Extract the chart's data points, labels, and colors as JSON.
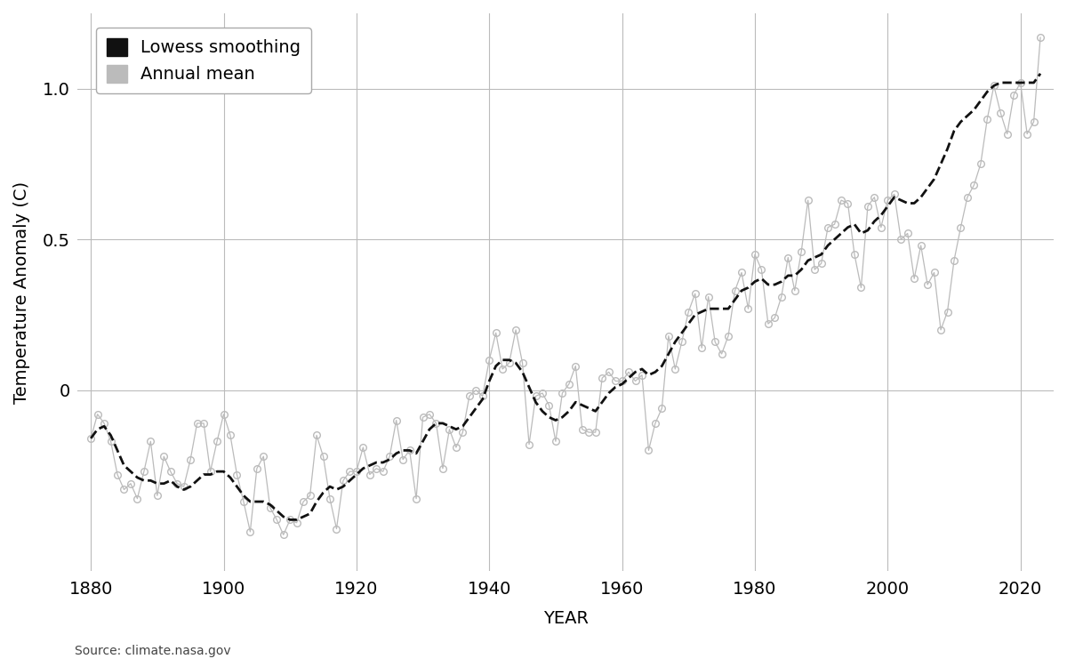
{
  "xlabel": "YEAR",
  "ylabel": "Temperature Anomaly (C)",
  "source_text": "Source: climate.nasa.gov",
  "background_color": "#ffffff",
  "grid_color": "#bbbbbb",
  "annual_color": "#bbbbbb",
  "lowess_color": "#111111",
  "ylim": [
    -0.6,
    1.25
  ],
  "xlim": [
    1878,
    2025
  ],
  "yticks": [
    0,
    0.5,
    1.0
  ],
  "xticks": [
    1880,
    1900,
    1920,
    1940,
    1960,
    1980,
    2000,
    2020
  ],
  "years": [
    1880,
    1881,
    1882,
    1883,
    1884,
    1885,
    1886,
    1887,
    1888,
    1889,
    1890,
    1891,
    1892,
    1893,
    1894,
    1895,
    1896,
    1897,
    1898,
    1899,
    1900,
    1901,
    1902,
    1903,
    1904,
    1905,
    1906,
    1907,
    1908,
    1909,
    1910,
    1911,
    1912,
    1913,
    1914,
    1915,
    1916,
    1917,
    1918,
    1919,
    1920,
    1921,
    1922,
    1923,
    1924,
    1925,
    1926,
    1927,
    1928,
    1929,
    1930,
    1931,
    1932,
    1933,
    1934,
    1935,
    1936,
    1937,
    1938,
    1939,
    1940,
    1941,
    1942,
    1943,
    1944,
    1945,
    1946,
    1947,
    1948,
    1949,
    1950,
    1951,
    1952,
    1953,
    1954,
    1955,
    1956,
    1957,
    1958,
    1959,
    1960,
    1961,
    1962,
    1963,
    1964,
    1965,
    1966,
    1967,
    1968,
    1969,
    1970,
    1971,
    1972,
    1973,
    1974,
    1975,
    1976,
    1977,
    1978,
    1979,
    1980,
    1981,
    1982,
    1983,
    1984,
    1985,
    1986,
    1987,
    1988,
    1989,
    1990,
    1991,
    1992,
    1993,
    1994,
    1995,
    1996,
    1997,
    1998,
    1999,
    2000,
    2001,
    2002,
    2003,
    2004,
    2005,
    2006,
    2007,
    2008,
    2009,
    2010,
    2011,
    2012,
    2013,
    2014,
    2015,
    2016,
    2017,
    2018,
    2019,
    2020,
    2021,
    2022,
    2023
  ],
  "annual_mean": [
    -0.16,
    -0.08,
    -0.11,
    -0.17,
    -0.28,
    -0.33,
    -0.31,
    -0.36,
    -0.27,
    -0.17,
    -0.35,
    -0.22,
    -0.27,
    -0.31,
    -0.32,
    -0.23,
    -0.11,
    -0.11,
    -0.27,
    -0.17,
    -0.08,
    -0.15,
    -0.28,
    -0.37,
    -0.47,
    -0.26,
    -0.22,
    -0.39,
    -0.43,
    -0.48,
    -0.43,
    -0.44,
    -0.37,
    -0.35,
    -0.15,
    -0.22,
    -0.36,
    -0.46,
    -0.3,
    -0.27,
    -0.27,
    -0.19,
    -0.28,
    -0.26,
    -0.27,
    -0.22,
    -0.1,
    -0.23,
    -0.2,
    -0.36,
    -0.09,
    -0.08,
    -0.11,
    -0.26,
    -0.13,
    -0.19,
    -0.14,
    -0.02,
    -0.0,
    -0.02,
    0.1,
    0.19,
    0.07,
    0.09,
    0.2,
    0.09,
    -0.18,
    -0.02,
    -0.01,
    -0.05,
    -0.17,
    -0.01,
    0.02,
    0.08,
    -0.13,
    -0.14,
    -0.14,
    0.04,
    0.06,
    0.03,
    0.03,
    0.06,
    0.03,
    0.05,
    -0.2,
    -0.11,
    -0.06,
    0.18,
    0.07,
    0.16,
    0.26,
    0.32,
    0.14,
    0.31,
    0.16,
    0.12,
    0.18,
    0.33,
    0.39,
    0.27,
    0.45,
    0.4,
    0.22,
    0.24,
    0.31,
    0.44,
    0.33,
    0.46,
    0.63,
    0.4,
    0.42,
    0.54,
    0.55,
    0.63,
    0.62,
    0.45,
    0.34,
    0.61,
    0.64,
    0.54,
    0.63,
    0.65,
    0.5,
    0.52,
    0.37,
    0.48,
    0.35,
    0.39,
    0.2,
    0.26,
    0.43,
    0.54,
    0.64,
    0.68,
    0.75,
    0.9,
    1.01,
    0.92,
    0.85,
    0.98,
    1.02,
    0.85,
    0.89,
    1.17
  ],
  "lowess": [
    -0.16,
    -0.13,
    -0.12,
    -0.15,
    -0.2,
    -0.25,
    -0.27,
    -0.29,
    -0.3,
    -0.3,
    -0.31,
    -0.31,
    -0.3,
    -0.32,
    -0.33,
    -0.32,
    -0.3,
    -0.28,
    -0.28,
    -0.27,
    -0.27,
    -0.29,
    -0.32,
    -0.35,
    -0.37,
    -0.37,
    -0.37,
    -0.38,
    -0.4,
    -0.42,
    -0.43,
    -0.43,
    -0.42,
    -0.41,
    -0.37,
    -0.34,
    -0.32,
    -0.33,
    -0.32,
    -0.3,
    -0.28,
    -0.26,
    -0.25,
    -0.24,
    -0.24,
    -0.23,
    -0.21,
    -0.2,
    -0.2,
    -0.21,
    -0.17,
    -0.13,
    -0.11,
    -0.11,
    -0.12,
    -0.13,
    -0.12,
    -0.09,
    -0.06,
    -0.03,
    0.03,
    0.08,
    0.1,
    0.1,
    0.09,
    0.06,
    0.01,
    -0.04,
    -0.07,
    -0.09,
    -0.1,
    -0.09,
    -0.07,
    -0.04,
    -0.05,
    -0.06,
    -0.07,
    -0.04,
    -0.01,
    0.01,
    0.02,
    0.04,
    0.06,
    0.07,
    0.05,
    0.06,
    0.08,
    0.12,
    0.16,
    0.19,
    0.22,
    0.25,
    0.26,
    0.27,
    0.27,
    0.27,
    0.27,
    0.3,
    0.33,
    0.34,
    0.36,
    0.37,
    0.35,
    0.35,
    0.36,
    0.38,
    0.38,
    0.4,
    0.43,
    0.44,
    0.45,
    0.48,
    0.5,
    0.52,
    0.54,
    0.55,
    0.52,
    0.53,
    0.56,
    0.58,
    0.61,
    0.64,
    0.63,
    0.62,
    0.62,
    0.64,
    0.67,
    0.7,
    0.75,
    0.8,
    0.86,
    0.89,
    0.91,
    0.93,
    0.96,
    0.99,
    1.01,
    1.02,
    1.02,
    1.02,
    1.02,
    1.02,
    1.02,
    1.05
  ],
  "legend_lowess_label": "Lowess smoothing",
  "legend_annual_label": "Annual mean",
  "tick_fontsize": 14,
  "label_fontsize": 14,
  "source_fontsize": 10
}
